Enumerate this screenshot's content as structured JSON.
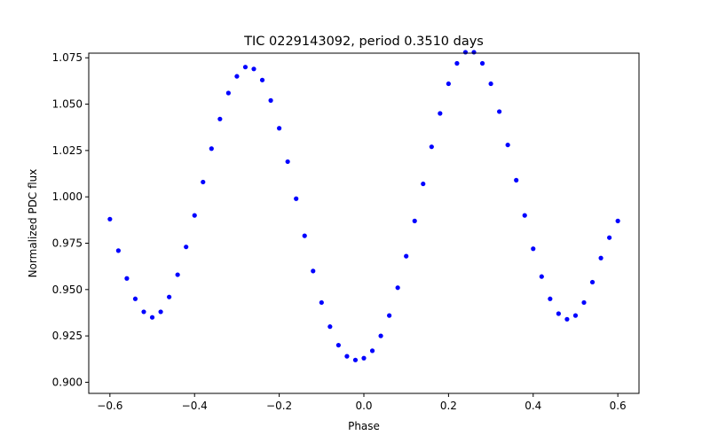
{
  "chart_data": {
    "type": "scatter",
    "title": "TIC 0229143092, period 0.3510 days",
    "xlabel": "Phase",
    "ylabel": "Normalized PDC flux",
    "xlim": [
      -0.65,
      0.65
    ],
    "ylim": [
      0.894,
      1.0775
    ],
    "x_ticks": [
      -0.6,
      -0.4,
      -0.2,
      0.0,
      0.2,
      0.4,
      0.6
    ],
    "x_tick_labels": [
      "−0.6",
      "−0.4",
      "−0.2",
      "0.0",
      "0.2",
      "0.4",
      "0.6"
    ],
    "y_ticks": [
      0.9,
      0.925,
      0.95,
      0.975,
      1.0,
      1.025,
      1.05,
      1.075
    ],
    "y_tick_labels": [
      "0.900",
      "0.925",
      "0.950",
      "0.975",
      "1.000",
      "1.025",
      "1.050",
      "1.075"
    ],
    "grid": false,
    "marker_color": "#0000ff",
    "series": [
      {
        "x": [
          -0.6,
          -0.58,
          -0.56,
          -0.54,
          -0.52,
          -0.5,
          -0.48,
          -0.46,
          -0.44,
          -0.42,
          -0.4,
          -0.38,
          -0.36,
          -0.34,
          -0.32,
          -0.3,
          -0.28,
          -0.26,
          -0.24,
          -0.22,
          -0.2,
          -0.18,
          -0.16,
          -0.14,
          -0.12,
          -0.1,
          -0.08,
          -0.06,
          -0.04,
          -0.02,
          0.0,
          0.02,
          0.04,
          0.06,
          0.08,
          0.1,
          0.12,
          0.14,
          0.16,
          0.18,
          0.2,
          0.22,
          0.24,
          0.26,
          0.28,
          0.3,
          0.32,
          0.34,
          0.36,
          0.38,
          0.4,
          0.42,
          0.44,
          0.46,
          0.48,
          0.5,
          0.52,
          0.54,
          0.56,
          0.58,
          0.6
        ],
        "y": [
          0.988,
          0.971,
          0.956,
          0.945,
          0.938,
          0.935,
          0.938,
          0.946,
          0.958,
          0.973,
          0.99,
          1.008,
          1.026,
          1.042,
          1.056,
          1.065,
          1.07,
          1.069,
          1.063,
          1.052,
          1.037,
          1.019,
          0.999,
          0.979,
          0.96,
          0.943,
          0.93,
          0.92,
          0.914,
          0.912,
          0.913,
          0.917,
          0.925,
          0.936,
          0.951,
          0.968,
          0.987,
          1.007,
          1.027,
          1.045,
          1.061,
          1.072,
          1.078,
          1.078,
          1.072,
          1.061,
          1.046,
          1.028,
          1.009,
          0.99,
          0.972,
          0.957,
          0.945,
          0.937,
          0.934,
          0.936,
          0.943,
          0.954,
          0.967,
          0.978,
          0.987
        ]
      }
    ]
  }
}
